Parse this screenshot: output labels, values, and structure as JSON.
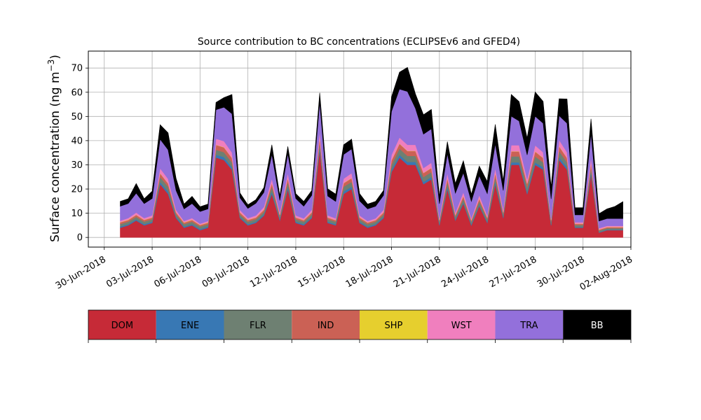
{
  "chart_data": {
    "type": "area",
    "stacked": true,
    "title": "Source contribution to BC concentrations (ECLIPSEv6 and GFED4)",
    "ylabel": "Surface concentration (ng m",
    "ylabel_sup": "−3",
    "ylabel_close": ")",
    "xlabel": "",
    "grid": true,
    "ylim": [
      -4,
      77
    ],
    "xlim": [
      "2018-06-29",
      "2018-08-02"
    ],
    "y_ticks": [
      0,
      10,
      20,
      30,
      40,
      50,
      60,
      70
    ],
    "x_ticks": [
      "2018-06-30",
      "2018-07-03",
      "2018-07-06",
      "2018-07-09",
      "2018-07-12",
      "2018-07-15",
      "2018-07-18",
      "2018-07-21",
      "2018-07-24",
      "2018-07-27",
      "2018-07-30",
      "2018-08-02"
    ],
    "x_tick_labels": [
      "30-Jun-2018",
      "03-Jul-2018",
      "06-Jul-2018",
      "09-Jul-2018",
      "12-Jul-2018",
      "15-Jul-2018",
      "18-Jul-2018",
      "21-Jul-2018",
      "24-Jul-2018",
      "27-Jul-2018",
      "30-Jul-2018",
      "02-Aug-2018"
    ],
    "legend_placement": "colorbar-below",
    "time": [
      "2018-07-01 00:00",
      "2018-07-01 12:00",
      "2018-07-02 00:00",
      "2018-07-02 12:00",
      "2018-07-03 00:00",
      "2018-07-03 12:00",
      "2018-07-04 00:00",
      "2018-07-04 12:00",
      "2018-07-05 00:00",
      "2018-07-05 12:00",
      "2018-07-06 00:00",
      "2018-07-06 12:00",
      "2018-07-07 00:00",
      "2018-07-07 12:00",
      "2018-07-08 00:00",
      "2018-07-08 12:00",
      "2018-07-09 00:00",
      "2018-07-09 12:00",
      "2018-07-10 00:00",
      "2018-07-10 12:00",
      "2018-07-11 00:00",
      "2018-07-11 12:00",
      "2018-07-12 00:00",
      "2018-07-12 12:00",
      "2018-07-13 00:00",
      "2018-07-13 12:00",
      "2018-07-14 00:00",
      "2018-07-14 12:00",
      "2018-07-15 00:00",
      "2018-07-15 12:00",
      "2018-07-16 00:00",
      "2018-07-16 12:00",
      "2018-07-17 00:00",
      "2018-07-17 12:00",
      "2018-07-18 00:00",
      "2018-07-18 12:00",
      "2018-07-19 00:00",
      "2018-07-19 12:00",
      "2018-07-20 00:00",
      "2018-07-20 12:00",
      "2018-07-21 00:00",
      "2018-07-21 12:00",
      "2018-07-22 00:00",
      "2018-07-22 12:00",
      "2018-07-23 00:00",
      "2018-07-23 12:00",
      "2018-07-24 00:00",
      "2018-07-24 12:00",
      "2018-07-25 00:00",
      "2018-07-25 12:00",
      "2018-07-26 00:00",
      "2018-07-26 12:00",
      "2018-07-27 00:00",
      "2018-07-27 12:00",
      "2018-07-28 00:00",
      "2018-07-28 12:00",
      "2018-07-29 00:00",
      "2018-07-29 12:00",
      "2018-07-30 00:00",
      "2018-07-30 12:00",
      "2018-07-31 00:00",
      "2018-07-31 12:00",
      "2018-08-01 00:00",
      "2018-08-01 12:00"
    ],
    "series": [
      {
        "name": "DOM",
        "color": "#c62a37",
        "values": [
          4,
          5,
          7,
          5,
          6,
          22,
          18,
          8,
          4,
          5,
          3,
          4,
          33,
          32,
          28,
          8,
          5,
          6,
          9,
          18,
          7,
          20,
          6,
          5,
          8,
          36,
          6,
          5,
          18,
          20,
          6,
          4,
          5,
          8,
          27,
          33,
          30,
          30,
          22,
          24,
          5,
          20,
          7,
          14,
          5,
          13,
          6,
          22,
          8,
          30,
          30,
          18,
          30,
          28,
          5,
          32,
          28,
          4,
          4,
          26,
          2,
          3,
          3,
          3
        ]
      },
      {
        "name": "ENE",
        "color": "#3878b4",
        "values": [
          0.5,
          0.5,
          0.5,
          0.5,
          0.5,
          1,
          1,
          0.5,
          0.5,
          0.5,
          0.5,
          0.5,
          1.2,
          1.2,
          1,
          0.5,
          0.5,
          0.5,
          0.5,
          1,
          0.5,
          1,
          0.5,
          0.5,
          0.5,
          1.2,
          0.5,
          0.5,
          1,
          1,
          0.5,
          0.5,
          0.5,
          0.5,
          1,
          1.2,
          1.2,
          1.2,
          1,
          1,
          0.5,
          1,
          0.5,
          0.5,
          0.5,
          0.5,
          0.5,
          1,
          0.5,
          1,
          1,
          0.8,
          1,
          1,
          0.5,
          1.2,
          1,
          0.3,
          0.3,
          1,
          0.2,
          0.2,
          0.2,
          0.2
        ]
      },
      {
        "name": "FLR",
        "color": "#6e8072",
        "values": [
          1,
          1,
          1,
          1,
          1,
          2,
          2,
          1,
          1,
          1,
          1,
          1,
          2,
          2,
          2,
          1,
          1,
          1,
          1,
          2,
          1,
          2,
          1,
          1,
          1,
          2,
          1,
          1,
          2,
          2,
          1,
          1,
          1,
          1,
          2,
          2.5,
          2.5,
          2.5,
          2,
          2,
          1,
          2,
          1,
          1.5,
          1,
          1.5,
          1,
          2,
          1,
          2.5,
          2.5,
          2,
          2.5,
          2,
          1,
          2.5,
          2,
          0.8,
          0.8,
          2,
          0.6,
          0.6,
          0.6,
          0.6
        ]
      },
      {
        "name": "IND",
        "color": "#cb6155",
        "values": [
          0.7,
          0.7,
          0.8,
          0.7,
          0.7,
          1.5,
          1.3,
          0.8,
          0.6,
          0.7,
          0.6,
          0.6,
          2,
          2,
          1.8,
          0.8,
          0.7,
          0.7,
          0.9,
          1.4,
          0.8,
          1.5,
          0.7,
          0.6,
          0.8,
          2,
          0.7,
          0.6,
          1.4,
          1.5,
          0.7,
          0.6,
          0.6,
          0.8,
          1.8,
          2,
          2,
          2,
          1.6,
          1.7,
          0.6,
          1.5,
          0.8,
          1.1,
          0.6,
          1,
          0.7,
          1.6,
          0.8,
          2,
          2,
          1.4,
          2,
          1.8,
          0.6,
          2,
          1.8,
          0.5,
          0.5,
          1.7,
          0.4,
          0.4,
          0.4,
          0.4
        ]
      },
      {
        "name": "SHP",
        "color": "#e6cf2e",
        "values": [
          0.1,
          0.1,
          0.1,
          0.1,
          0.1,
          0.1,
          0.1,
          0.1,
          0.1,
          0.1,
          0.1,
          0.1,
          0.1,
          0.1,
          0.1,
          0.1,
          0.1,
          0.1,
          0.1,
          0.1,
          0.1,
          0.1,
          0.1,
          0.1,
          0.1,
          0.1,
          0.1,
          0.1,
          0.1,
          0.1,
          0.1,
          0.1,
          0.1,
          0.1,
          0.1,
          0.1,
          0.1,
          0.1,
          0.1,
          0.1,
          0.1,
          0.1,
          0.1,
          0.1,
          0.1,
          0.1,
          0.1,
          0.1,
          0.1,
          0.1,
          0.1,
          0.1,
          0.1,
          0.1,
          0.1,
          0.1,
          0.1,
          0.1,
          0.1,
          0.1,
          0.1,
          0.1,
          0.1,
          0.1
        ]
      },
      {
        "name": "WST",
        "color": "#f07fbe",
        "values": [
          0.6,
          0.7,
          0.9,
          0.7,
          0.8,
          2,
          1.8,
          1,
          0.6,
          0.7,
          0.5,
          0.6,
          2.5,
          2.5,
          2.2,
          1,
          0.7,
          0.8,
          1.1,
          1.8,
          0.9,
          2,
          0.8,
          0.7,
          1,
          2.5,
          0.8,
          0.7,
          1.8,
          2,
          0.8,
          0.6,
          0.7,
          1,
          2.2,
          2.5,
          2.5,
          2.5,
          2,
          2.1,
          0.7,
          2,
          0.9,
          1.5,
          0.7,
          1.4,
          0.8,
          2,
          1,
          2.5,
          2.5,
          1.8,
          2.5,
          2.3,
          0.7,
          2.5,
          2.3,
          0.6,
          0.6,
          2.2,
          0.5,
          0.5,
          0.5,
          0.5
        ]
      },
      {
        "name": "TRA",
        "color": "#9370db",
        "values": [
          6,
          6,
          8,
          6,
          7,
          12,
          12,
          8,
          5,
          6,
          5,
          5,
          12,
          14,
          16,
          5,
          4,
          5,
          6,
          10,
          5,
          8,
          7,
          5,
          6,
          12,
          8,
          7,
          10,
          10,
          6,
          5,
          5,
          6,
          18,
          20,
          22,
          15,
          14,
          14,
          6,
          8,
          8,
          8,
          7,
          8,
          9,
          10,
          8,
          12,
          10,
          10,
          12,
          12,
          8,
          10,
          12,
          3,
          3,
          10,
          3,
          3,
          3,
          3
        ]
      },
      {
        "name": "BB",
        "color": "#000000",
        "values": [
          2,
          2,
          4,
          2,
          3,
          6,
          7,
          5,
          2,
          3,
          2,
          2,
          3,
          4,
          8,
          2,
          1.5,
          1.5,
          2,
          4,
          2,
          3,
          2,
          2,
          2,
          4,
          3,
          3,
          4,
          4,
          3,
          2,
          2,
          2,
          6,
          7,
          10,
          6,
          8,
          8,
          3,
          5,
          4,
          5,
          3,
          4,
          5,
          8,
          4,
          9,
          8,
          7,
          10,
          9,
          5,
          7,
          10,
          3,
          3,
          6,
          3,
          4,
          5,
          7
        ]
      }
    ]
  }
}
